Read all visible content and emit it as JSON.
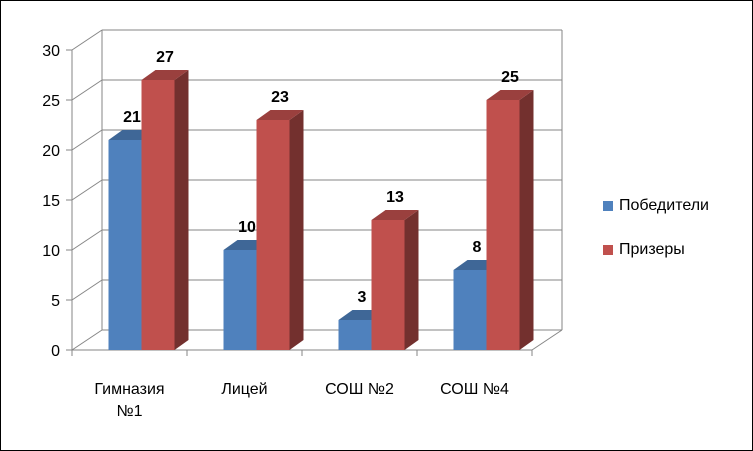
{
  "chart_data": {
    "type": "bar",
    "categories": [
      [
        "Гимназия",
        "№1"
      ],
      [
        "Лицей"
      ],
      [
        "СОШ №2"
      ],
      [
        "СОШ №4"
      ]
    ],
    "series": [
      {
        "name": "Победители",
        "values": [
          21,
          10,
          3,
          8
        ],
        "color": "#4F81BD"
      },
      {
        "name": "Призеры",
        "values": [
          27,
          23,
          13,
          25
        ],
        "color": "#C0504D"
      }
    ],
    "ylim": [
      0,
      30
    ],
    "yticks": [
      0,
      5,
      10,
      15,
      20,
      25,
      30
    ],
    "grid": true,
    "legend_position": "right",
    "data_labels": true
  }
}
